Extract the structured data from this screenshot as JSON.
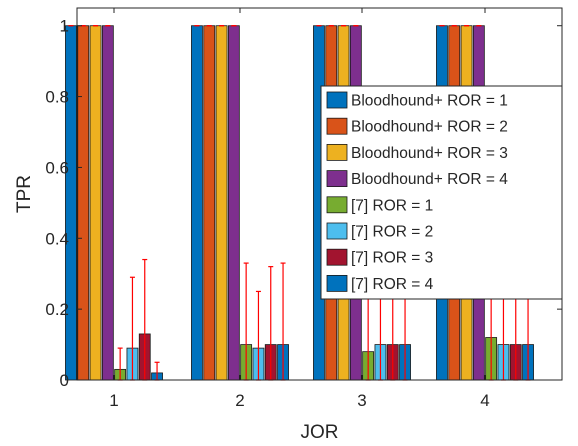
{
  "chart_data": {
    "type": "bar",
    "title": "",
    "xlabel": "JOR",
    "ylabel": "TPR",
    "ylim": [
      0,
      1.05
    ],
    "grid": false,
    "legend_position": "right",
    "categories": [
      "1",
      "2",
      "3",
      "4"
    ],
    "yticks": [
      "0",
      "0.2",
      "0.4",
      "0.6",
      "0.8",
      "1"
    ],
    "series": [
      {
        "name": "Bloodhound+ ROR = 1",
        "color": "#0072BD",
        "values": [
          1,
          1,
          1,
          1
        ],
        "err": [
          0,
          0,
          0,
          0
        ]
      },
      {
        "name": "Bloodhound+ ROR = 2",
        "color": "#D95319",
        "values": [
          1,
          1,
          1,
          1
        ],
        "err": [
          0,
          0,
          0,
          0
        ]
      },
      {
        "name": "Bloodhound+ ROR = 3",
        "color": "#EDB120",
        "values": [
          1,
          1,
          1,
          1
        ],
        "err": [
          0,
          0,
          0,
          0
        ]
      },
      {
        "name": "Bloodhound+ ROR = 4",
        "color": "#7E2F8E",
        "values": [
          1,
          1,
          1,
          1
        ],
        "err": [
          0,
          0,
          0,
          0
        ]
      },
      {
        "name": "[7] ROR = 1",
        "color": "#77AC30",
        "values": [
          0.03,
          0.1,
          0.08,
          0.12
        ],
        "err": [
          0.06,
          0.23,
          0.21,
          0.23
        ]
      },
      {
        "name": "[7] ROR = 2",
        "color": "#4DBEEE",
        "values": [
          0.09,
          0.09,
          0.1,
          0.1
        ],
        "err": [
          0.2,
          0.16,
          0.21,
          0.21
        ]
      },
      {
        "name": "[7] ROR = 3",
        "color": "#A2142F",
        "values": [
          0.13,
          0.1,
          0.1,
          0.1
        ],
        "err": [
          0.21,
          0.22,
          0.21,
          0.21
        ]
      },
      {
        "name": "[7] ROR = 4",
        "color": "#0072BD",
        "values": [
          0.02,
          0.1,
          0.1,
          0.1
        ],
        "err": [
          0.03,
          0.23,
          0.21,
          0.21
        ]
      }
    ],
    "error_bar_color": "#FF0000"
  }
}
